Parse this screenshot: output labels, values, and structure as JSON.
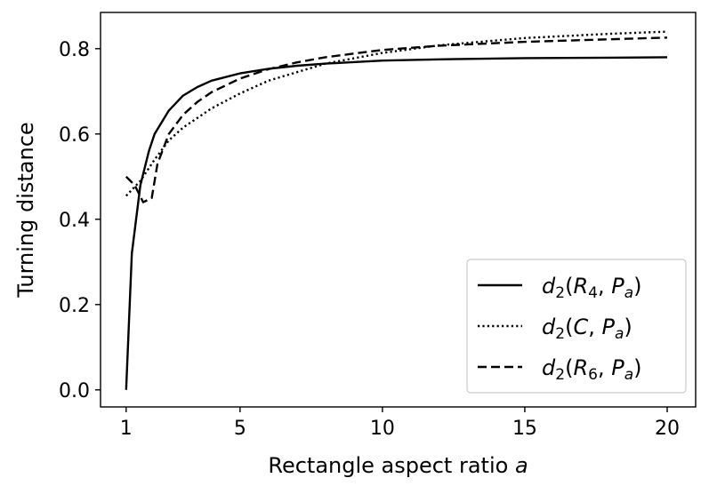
{
  "chart_data": {
    "type": "line",
    "xlabel": "Rectangle aspect ratio a",
    "xlabel_parts": {
      "text": "Rectangle aspect ratio ",
      "var": "a"
    },
    "ylabel": "Turning distance",
    "xlim": [
      0.1,
      21
    ],
    "ylim": [
      -0.04,
      0.885
    ],
    "xticks": [
      1,
      5,
      10,
      15,
      20
    ],
    "xtick_labels": [
      "1",
      "5",
      "10",
      "15",
      "20"
    ],
    "yticks": [
      0.0,
      0.2,
      0.4,
      0.6,
      0.8
    ],
    "ytick_labels": [
      "0.0",
      "0.2",
      "0.4",
      "0.6",
      "0.8"
    ],
    "legend_position": "lower-right",
    "series": [
      {
        "name": "d2(R4, Pa)",
        "label": {
          "f": "d",
          "sub": "2",
          "a1": "R",
          "a1sub": "4",
          "a2": "P",
          "a2sub": "a"
        },
        "style": "solid",
        "color": "#000000",
        "x": [
          1.0,
          1.2,
          1.5,
          1.8,
          2.0,
          2.5,
          3.0,
          3.5,
          4.0,
          5.0,
          6.0,
          7.0,
          8.0,
          10.0,
          12.0,
          15.0,
          18.0,
          20.0
        ],
        "y": [
          0.0,
          0.32,
          0.48,
          0.56,
          0.6,
          0.655,
          0.69,
          0.71,
          0.725,
          0.742,
          0.753,
          0.76,
          0.765,
          0.772,
          0.775,
          0.778,
          0.779,
          0.78
        ]
      },
      {
        "name": "d2(C, Pa)",
        "label": {
          "f": "d",
          "sub": "2",
          "a1": "C",
          "a1sub": "",
          "a2": "P",
          "a2sub": "a"
        },
        "style": "dotted",
        "color": "#000000",
        "x": [
          1.0,
          1.5,
          2.0,
          2.5,
          3.0,
          4.0,
          5.0,
          6.0,
          7.0,
          8.0,
          10.0,
          12.0,
          15.0,
          18.0,
          20.0
        ],
        "y": [
          0.455,
          0.49,
          0.54,
          0.585,
          0.615,
          0.66,
          0.695,
          0.725,
          0.745,
          0.765,
          0.79,
          0.808,
          0.825,
          0.835,
          0.84
        ]
      },
      {
        "name": "d2(R6, Pa)",
        "label": {
          "f": "d",
          "sub": "2",
          "a1": "R",
          "a1sub": "6",
          "a2": "P",
          "a2sub": "a"
        },
        "style": "dashed",
        "color": "#000000",
        "x": [
          1.0,
          1.3,
          1.6,
          1.9,
          2.1,
          2.5,
          3.0,
          3.5,
          4.0,
          5.0,
          6.0,
          7.0,
          8.0,
          10.0,
          12.0,
          15.0,
          18.0,
          20.0
        ],
        "y": [
          0.5,
          0.48,
          0.44,
          0.45,
          0.53,
          0.6,
          0.645,
          0.675,
          0.698,
          0.73,
          0.752,
          0.768,
          0.78,
          0.797,
          0.807,
          0.816,
          0.822,
          0.826
        ]
      }
    ]
  }
}
